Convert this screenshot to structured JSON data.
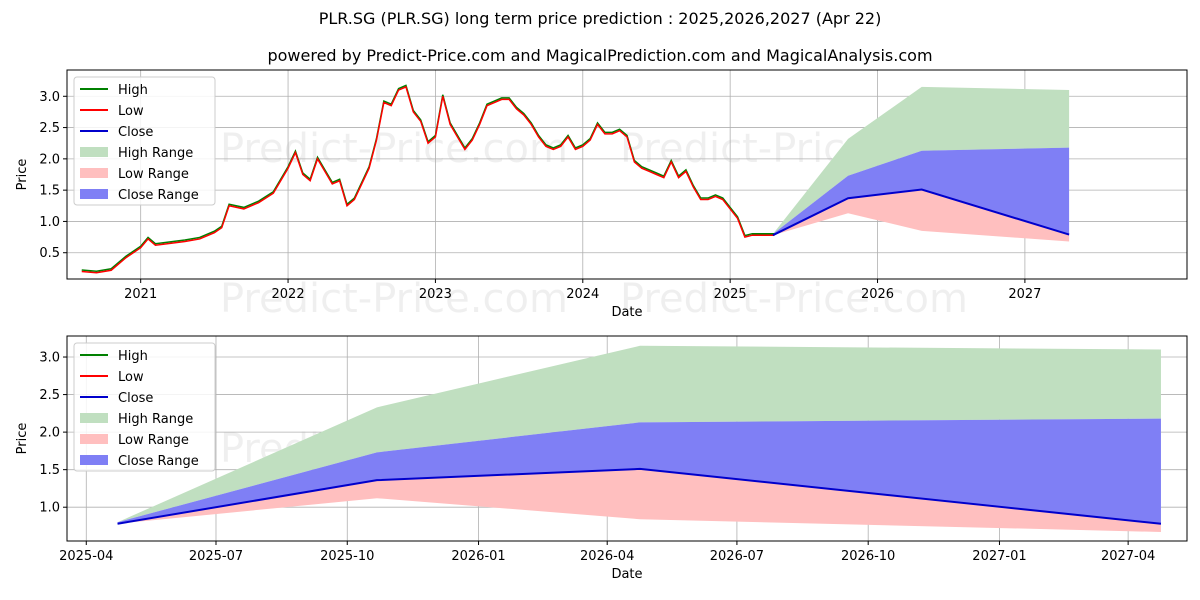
{
  "title": "PLR.SG (PLR.SG) long term price prediction : 2025,2026,2027 (Apr 22)",
  "subtitle": "powered by Predict-Price.com and MagicalPrediction.com and MagicalAnalysis.com",
  "watermark": "Predict-Price.com",
  "colors": {
    "high": "#008000",
    "low": "#ff0000",
    "close": "#0000cc",
    "high_range": "#c0dfc0",
    "low_range": "#ffbfbf",
    "close_range": "#7f7ff5",
    "grid": "#b0b0b0"
  },
  "chart_data": [
    {
      "type": "line",
      "xlabel": "Date",
      "ylabel": "Price",
      "xlim": [
        2020.5,
        2028.1
      ],
      "ylim": [
        0.08,
        3.42
      ],
      "xticks": [
        2021,
        2022,
        2023,
        2024,
        2025,
        2026,
        2027
      ],
      "xtick_labels": [
        "2021",
        "2022",
        "2023",
        "2024",
        "2025",
        "2026",
        "2027"
      ],
      "yticks": [
        0.5,
        1.0,
        1.5,
        2.0,
        2.5,
        3.0
      ],
      "ytick_labels": [
        "0.5",
        "1.0",
        "1.5",
        "2.0",
        "2.5",
        "3.0"
      ],
      "grid": true,
      "legend_position": "top-left",
      "legend": [
        "High",
        "Low",
        "Close",
        "High Range",
        "Low Range",
        "Close Range"
      ],
      "history": {
        "name": "Low",
        "x": [
          2020.6,
          2020.7,
          2020.8,
          2020.9,
          2021.0,
          2021.05,
          2021.1,
          2021.2,
          2021.3,
          2021.4,
          2021.5,
          2021.55,
          2021.6,
          2021.7,
          2021.8,
          2021.9,
          2022.0,
          2022.05,
          2022.1,
          2022.15,
          2022.2,
          2022.25,
          2022.3,
          2022.35,
          2022.4,
          2022.45,
          2022.5,
          2022.55,
          2022.6,
          2022.65,
          2022.7,
          2022.75,
          2022.8,
          2022.85,
          2022.9,
          2022.95,
          2023.0,
          2023.05,
          2023.1,
          2023.15,
          2023.2,
          2023.25,
          2023.3,
          2023.35,
          2023.4,
          2023.45,
          2023.5,
          2023.55,
          2023.6,
          2023.65,
          2023.7,
          2023.75,
          2023.8,
          2023.85,
          2023.9,
          2023.95,
          2024.0,
          2024.05,
          2024.1,
          2024.15,
          2024.2,
          2024.25,
          2024.3,
          2024.35,
          2024.4,
          2024.45,
          2024.5,
          2024.55,
          2024.6,
          2024.65,
          2024.7,
          2024.75,
          2024.8,
          2024.85,
          2024.9,
          2024.95,
          2025.0,
          2025.05,
          2025.1,
          2025.15,
          2025.2,
          2025.25,
          2025.3
        ],
        "y": [
          0.2,
          0.18,
          0.22,
          0.42,
          0.58,
          0.72,
          0.62,
          0.65,
          0.68,
          0.72,
          0.82,
          0.9,
          1.25,
          1.2,
          1.3,
          1.45,
          1.85,
          2.1,
          1.75,
          1.65,
          2.0,
          1.8,
          1.6,
          1.65,
          1.25,
          1.35,
          1.6,
          1.85,
          2.3,
          2.9,
          2.85,
          3.1,
          3.15,
          2.75,
          2.6,
          2.25,
          2.35,
          3.0,
          2.55,
          2.35,
          2.15,
          2.3,
          2.55,
          2.85,
          2.9,
          2.95,
          2.95,
          2.8,
          2.7,
          2.55,
          2.35,
          2.2,
          2.15,
          2.2,
          2.35,
          2.15,
          2.2,
          2.3,
          2.55,
          2.4,
          2.4,
          2.45,
          2.35,
          1.95,
          1.85,
          1.8,
          1.75,
          1.7,
          1.95,
          1.7,
          1.8,
          1.55,
          1.35,
          1.35,
          1.4,
          1.35,
          1.2,
          1.05,
          0.75,
          0.78,
          0.78,
          0.78,
          0.78
        ]
      },
      "forecast": {
        "x": [
          2025.29,
          2025.8,
          2026.3,
          2027.3
        ],
        "close": [
          0.78,
          1.37,
          1.51,
          0.79
        ],
        "high_range_upper": [
          0.8,
          2.32,
          3.15,
          3.1
        ],
        "low_range_lower": [
          0.78,
          1.13,
          0.85,
          0.68
        ],
        "close_range_upper": [
          0.8,
          1.73,
          2.13,
          2.18
        ],
        "close_range_lower": [
          0.78,
          1.37,
          1.51,
          0.79
        ]
      }
    },
    {
      "type": "area",
      "xlabel": "Date",
      "ylabel": "Price",
      "xlim": [
        2025.21,
        2027.36
      ],
      "ylim": [
        0.55,
        3.28
      ],
      "xticks": [
        2025.247,
        2025.496,
        2025.748,
        2026.0,
        2026.247,
        2026.496,
        2026.748,
        2027.0,
        2027.247
      ],
      "xtick_labels": [
        "2025-04",
        "2025-07",
        "2025-10",
        "2026-01",
        "2026-04",
        "2026-07",
        "2026-10",
        "2027-01",
        "2027-04"
      ],
      "yticks": [
        1.0,
        1.5,
        2.0,
        2.5,
        3.0
      ],
      "ytick_labels": [
        "1.0",
        "1.5",
        "2.0",
        "2.5",
        "3.0"
      ],
      "grid": true,
      "legend_position": "top-left",
      "legend": [
        "High",
        "Low",
        "Close",
        "High Range",
        "Low Range",
        "Close Range"
      ],
      "forecast": {
        "x": [
          2025.307,
          2025.805,
          2026.31,
          2027.31
        ],
        "close": [
          0.78,
          1.36,
          1.51,
          0.78
        ],
        "high_range_upper": [
          0.8,
          2.33,
          3.15,
          3.1
        ],
        "low_range_lower": [
          0.78,
          1.12,
          0.84,
          0.67
        ],
        "close_range_upper": [
          0.8,
          1.73,
          2.13,
          2.18
        ],
        "close_range_lower": [
          0.78,
          1.36,
          1.51,
          0.78
        ]
      }
    }
  ]
}
